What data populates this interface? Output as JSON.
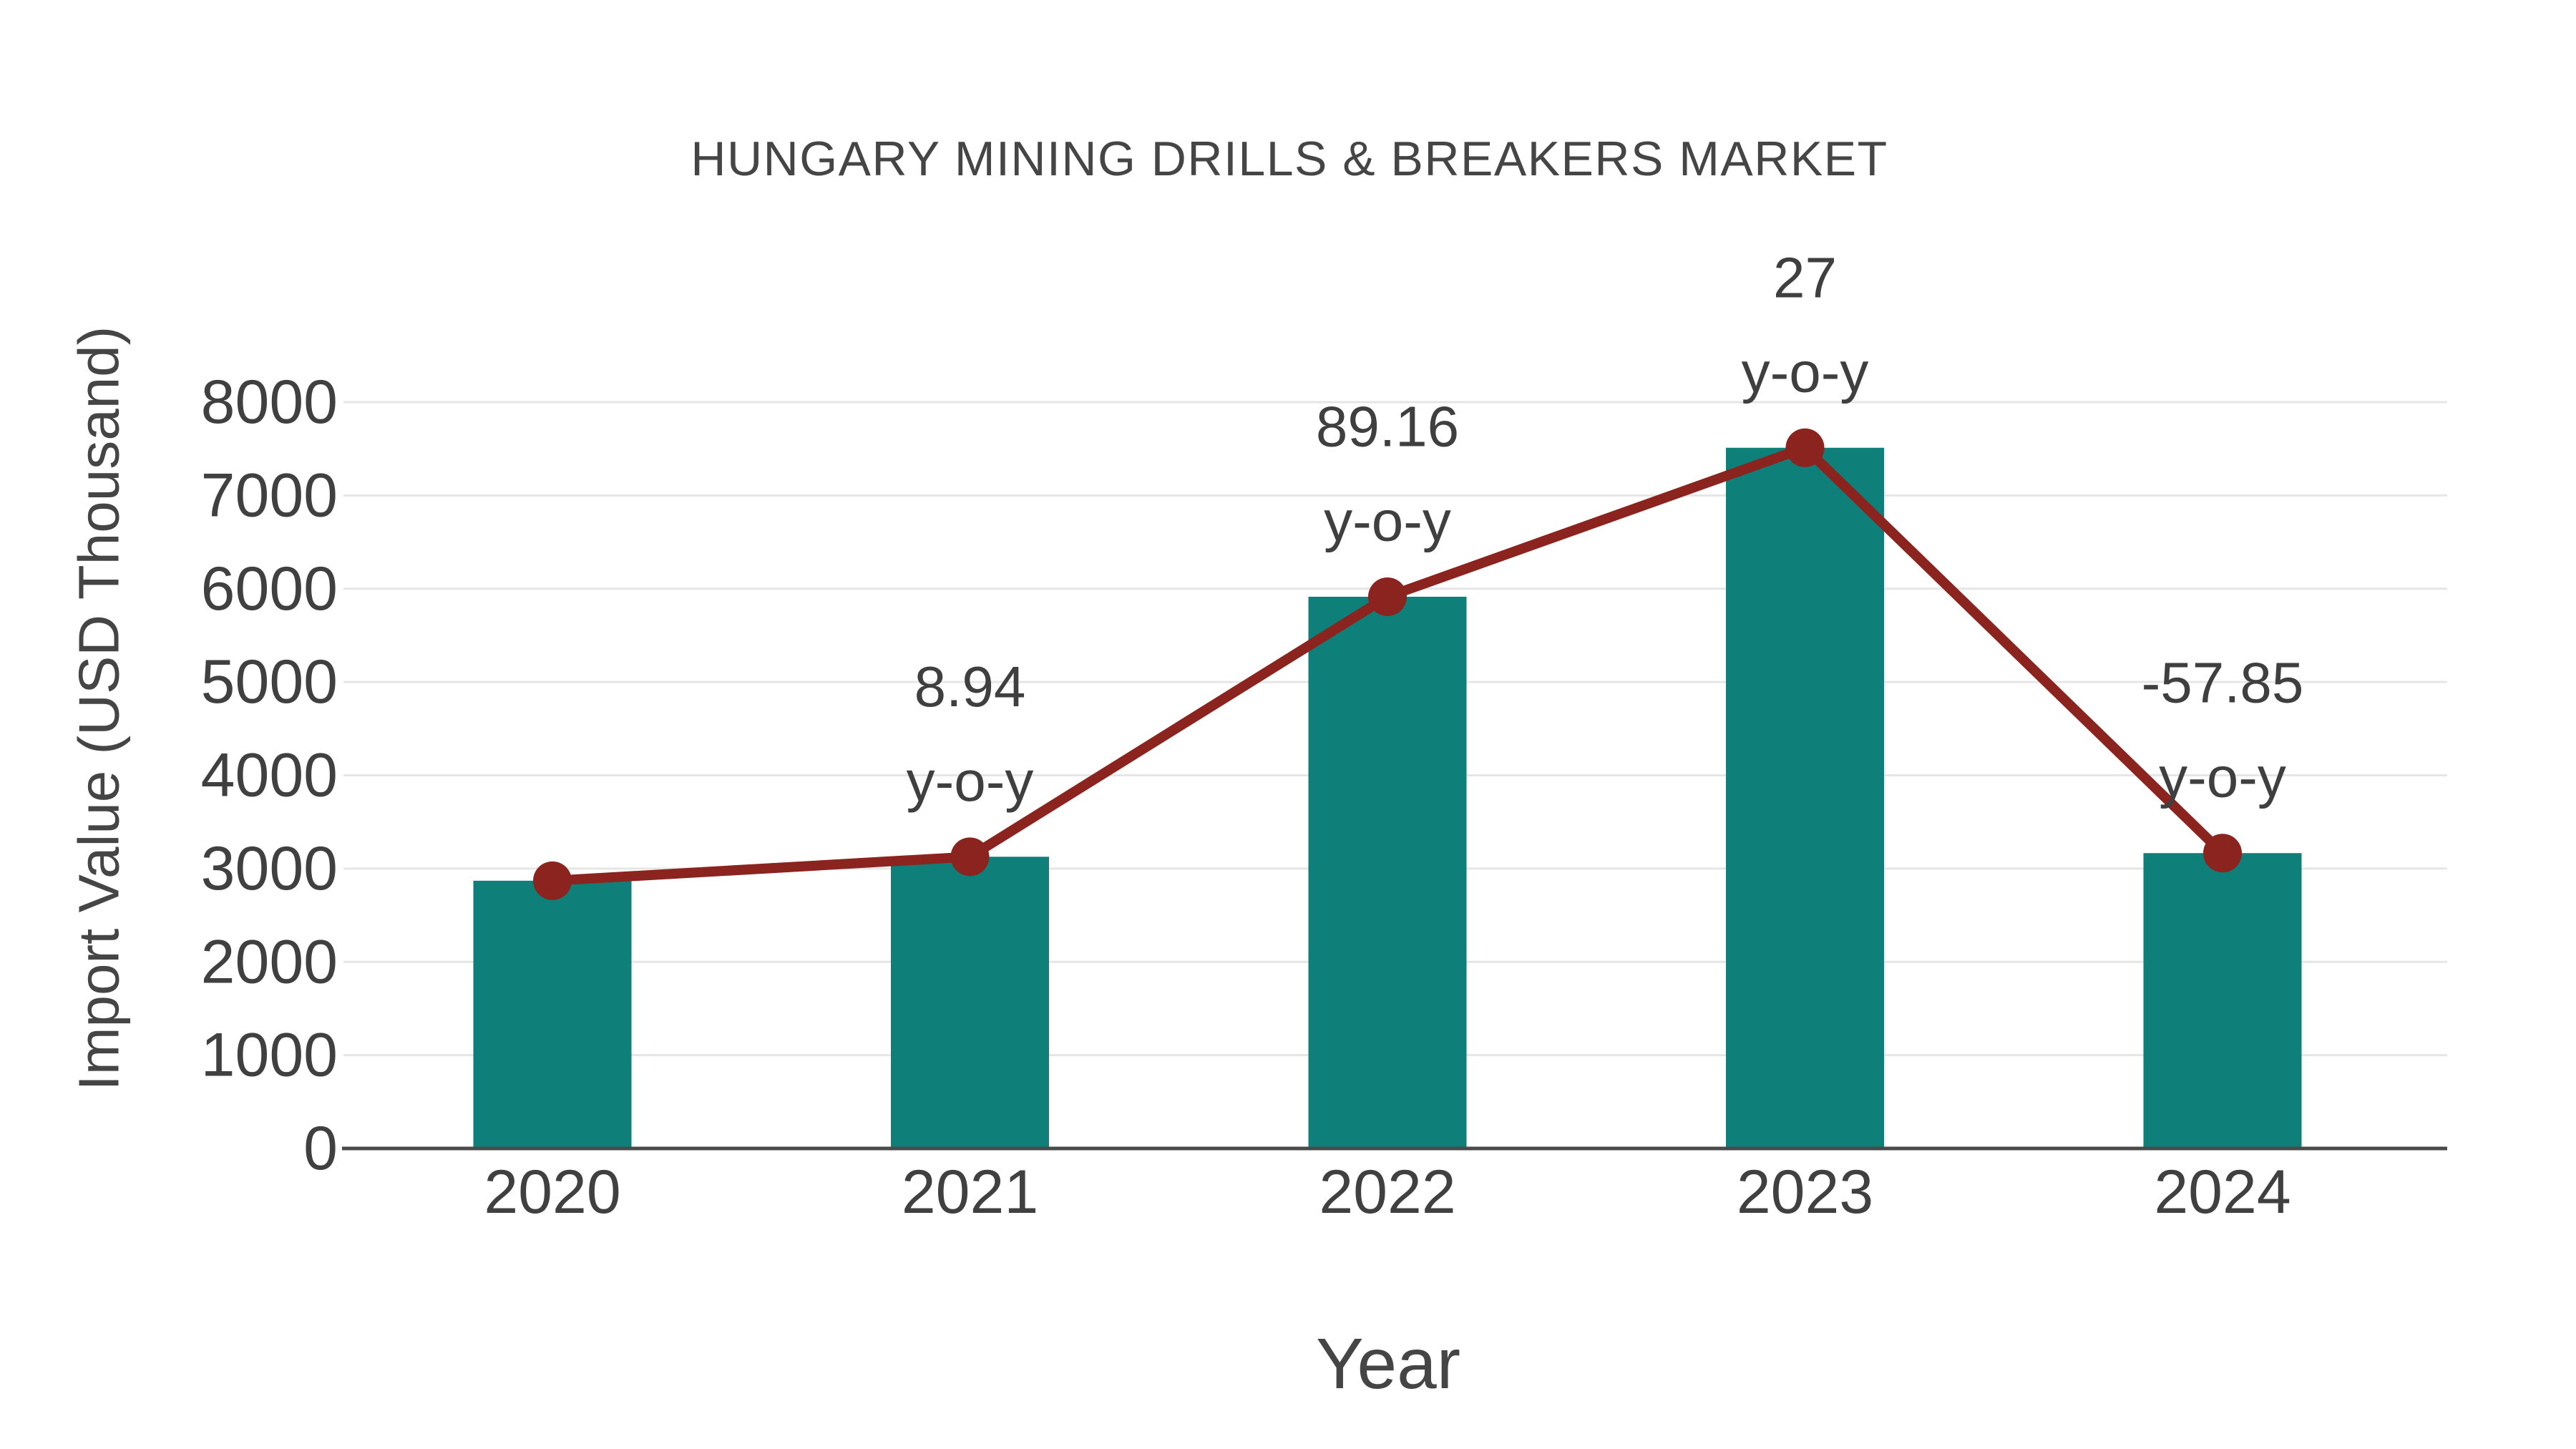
{
  "chart_data": {
    "type": "bar",
    "subtype": "bar-with-line-overlay",
    "title": "HUNGARY MINING DRILLS & BREAKERS MARKET",
    "xlabel": "Year",
    "ylabel": "Import Value (USD Thousand)",
    "categories": [
      "2020",
      "2021",
      "2022",
      "2023",
      "2024"
    ],
    "series": [
      {
        "name": "Import Value (USD Thousand)",
        "type": "bar",
        "values": [
          2870,
          3127,
          5914,
          7511,
          3166
        ]
      },
      {
        "name": "y-o-y change marker line",
        "type": "line",
        "values": [
          2870,
          3127,
          5914,
          7511,
          3166
        ],
        "point_labels": [
          null,
          "8.94",
          "89.16",
          "27",
          "-57.85"
        ],
        "point_label_suffix": "y-o-y"
      }
    ],
    "yoy_percent": [
      null,
      8.94,
      89.16,
      27,
      -57.85
    ],
    "ylim": [
      0,
      8000
    ],
    "yticks": [
      0,
      1000,
      2000,
      3000,
      4000,
      5000,
      6000,
      7000,
      8000
    ],
    "grid": "horizontal",
    "legend_position": "none",
    "colors": {
      "bar": "#0f7f7a",
      "line": "#8b231e",
      "marker": "#8b231e",
      "gridline": "#e6e6e6",
      "axis_line": "#4a4a4a",
      "tick_text": "#404040",
      "title_text": "#454545",
      "annotation_text": "#3f3f3f",
      "background": "#ffffff"
    }
  }
}
